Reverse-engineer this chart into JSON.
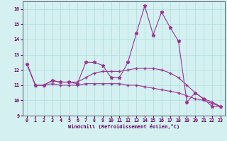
{
  "xlabel": "Windchill (Refroidissement éolien,°C)",
  "x": [
    0,
    1,
    2,
    3,
    4,
    5,
    6,
    7,
    8,
    9,
    10,
    11,
    12,
    13,
    14,
    15,
    16,
    17,
    18,
    19,
    20,
    21,
    22,
    23
  ],
  "line1": [
    12.4,
    11.0,
    11.0,
    11.3,
    11.2,
    11.2,
    11.1,
    12.5,
    12.5,
    12.3,
    11.5,
    11.5,
    12.5,
    14.4,
    16.2,
    14.3,
    15.8,
    14.8,
    13.9,
    9.9,
    10.5,
    10.1,
    9.6,
    9.6
  ],
  "line2": [
    12.4,
    11.0,
    11.0,
    11.3,
    11.2,
    11.2,
    11.2,
    11.5,
    11.8,
    11.9,
    11.9,
    11.9,
    12.0,
    12.1,
    12.1,
    12.1,
    12.0,
    11.8,
    11.5,
    11.0,
    10.5,
    10.1,
    9.9,
    9.6
  ],
  "line3": [
    12.4,
    11.0,
    11.0,
    11.1,
    11.0,
    11.0,
    11.0,
    11.1,
    11.1,
    11.1,
    11.1,
    11.1,
    11.0,
    11.0,
    10.9,
    10.8,
    10.7,
    10.6,
    10.5,
    10.3,
    10.1,
    10.0,
    9.8,
    9.6
  ],
  "line_color": "#993399",
  "bg_color": "#d4f0f0",
  "grid_color": "#aadddd",
  "axis_color": "#555566",
  "text_color": "#660066",
  "ylim": [
    9,
    16.5
  ],
  "yticks": [
    9,
    10,
    11,
    12,
    13,
    14,
    15,
    16
  ],
  "xlim": [
    -0.5,
    23.5
  ],
  "xticks": [
    0,
    1,
    2,
    3,
    4,
    5,
    6,
    7,
    8,
    9,
    10,
    11,
    12,
    13,
    14,
    15,
    16,
    17,
    18,
    19,
    20,
    21,
    22,
    23
  ]
}
